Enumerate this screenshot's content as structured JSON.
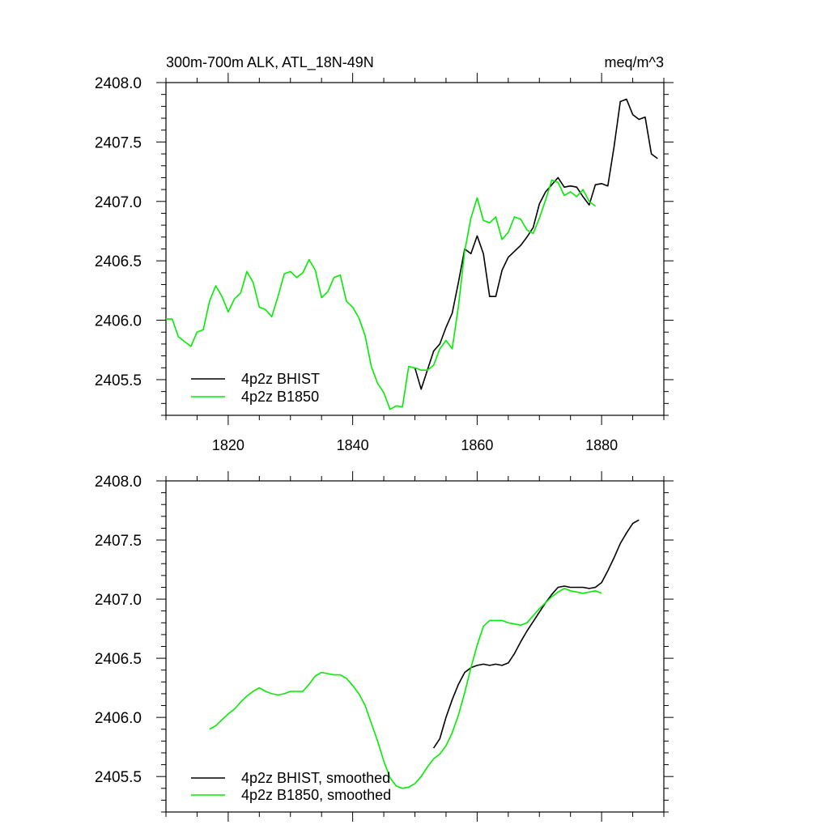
{
  "chart_data": [
    {
      "type": "line",
      "title": "300m-700m ALK, ATL_18N-49N",
      "units": "meq/m^3",
      "xlim": [
        1810,
        1890
      ],
      "ylim": [
        2405.2,
        2408.0
      ],
      "x_ticks": [
        1820,
        1840,
        1860,
        1880
      ],
      "x_tick_labels": [
        "1820",
        "1840",
        "1860",
        "1880"
      ],
      "y_ticks": [
        2405.5,
        2406.0,
        2406.5,
        2407.0,
        2407.5,
        2408.0
      ],
      "y_tick_labels": [
        "2405.5",
        "2406.0",
        "2406.5",
        "2407.0",
        "2407.5",
        "2408.0"
      ],
      "legend_position": "bottom-left",
      "series": [
        {
          "name": "4p2z BHIST",
          "color": "#000000",
          "x": [
            1850,
            1851,
            1852,
            1853,
            1854,
            1855,
            1856,
            1857,
            1858,
            1859,
            1860,
            1861,
            1862,
            1863,
            1864,
            1865,
            1866,
            1867,
            1868,
            1869,
            1870,
            1871,
            1872,
            1873,
            1874,
            1875,
            1876,
            1877,
            1878,
            1879,
            1880,
            1881,
            1882,
            1883,
            1884,
            1885,
            1886,
            1887,
            1888,
            1889
          ],
          "y": [
            2405.6,
            2405.42,
            2405.58,
            2405.74,
            2405.8,
            2405.94,
            2406.06,
            2406.32,
            2406.6,
            2406.56,
            2406.71,
            2406.56,
            2406.2,
            2406.2,
            2406.42,
            2406.53,
            2406.58,
            2406.63,
            2406.7,
            2406.78,
            2406.98,
            2407.08,
            2407.14,
            2407.2,
            2407.12,
            2407.13,
            2407.12,
            2407.04,
            2406.97,
            2407.14,
            2407.15,
            2407.13,
            2407.46,
            2407.84,
            2407.86,
            2407.73,
            2407.69,
            2407.71,
            2407.4,
            2407.36
          ]
        },
        {
          "name": "4p2z B1850",
          "color": "#00ee00",
          "x": [
            1810,
            1811,
            1812,
            1813,
            1814,
            1815,
            1816,
            1817,
            1818,
            1819,
            1820,
            1821,
            1822,
            1823,
            1824,
            1825,
            1826,
            1827,
            1828,
            1829,
            1830,
            1831,
            1832,
            1833,
            1834,
            1835,
            1836,
            1837,
            1838,
            1839,
            1840,
            1841,
            1842,
            1843,
            1844,
            1845,
            1846,
            1847,
            1848,
            1849,
            1850,
            1851,
            1852,
            1853,
            1854,
            1855,
            1856,
            1857,
            1858,
            1859,
            1860,
            1861,
            1862,
            1863,
            1864,
            1865,
            1866,
            1867,
            1868,
            1869,
            1870,
            1871,
            1872,
            1873,
            1874,
            1875,
            1876,
            1877,
            1878,
            1879
          ],
          "y": [
            2406.01,
            2406.01,
            2405.86,
            2405.82,
            2405.78,
            2405.9,
            2405.92,
            2406.16,
            2406.29,
            2406.2,
            2406.07,
            2406.18,
            2406.23,
            2406.41,
            2406.32,
            2406.11,
            2406.09,
            2406.03,
            2406.2,
            2406.39,
            2406.41,
            2406.36,
            2406.4,
            2406.51,
            2406.42,
            2406.19,
            2406.24,
            2406.36,
            2406.38,
            2406.16,
            2406.11,
            2406.02,
            2405.87,
            2405.61,
            2405.47,
            2405.39,
            2405.25,
            2405.28,
            2405.27,
            2405.61,
            2405.6,
            2405.58,
            2405.58,
            2405.62,
            2405.76,
            2405.83,
            2405.76,
            2406.12,
            2406.58,
            2406.86,
            2407.03,
            2406.84,
            2406.82,
            2406.87,
            2406.68,
            2406.74,
            2406.87,
            2406.85,
            2406.76,
            2406.73,
            2406.86,
            2407.01,
            2407.18,
            2407.16,
            2407.05,
            2407.08,
            2407.04,
            2407.1,
            2407.0,
            2406.96
          ]
        }
      ]
    },
    {
      "type": "line",
      "title": "",
      "units": "",
      "xlim": [
        1810,
        1890
      ],
      "ylim": [
        2405.2,
        2408.0
      ],
      "x_ticks": [
        1820,
        1840,
        1860,
        1880
      ],
      "x_tick_labels": [],
      "y_ticks": [
        2405.5,
        2406.0,
        2406.5,
        2407.0,
        2407.5,
        2408.0
      ],
      "y_tick_labels": [
        "2405.5",
        "2406.0",
        "2406.5",
        "2407.0",
        "2407.5",
        "2408.0"
      ],
      "legend_position": "bottom-left",
      "series": [
        {
          "name": "4p2z BHIST, smoothed",
          "color": "#000000",
          "x": [
            1853,
            1854,
            1855,
            1856,
            1857,
            1858,
            1859,
            1860,
            1861,
            1862,
            1863,
            1864,
            1865,
            1866,
            1867,
            1868,
            1869,
            1870,
            1871,
            1872,
            1873,
            1874,
            1875,
            1876,
            1877,
            1878,
            1879,
            1880,
            1881,
            1882,
            1883,
            1884,
            1885,
            1886
          ],
          "y": [
            2405.74,
            2405.82,
            2406.0,
            2406.15,
            2406.28,
            2406.38,
            2406.42,
            2406.44,
            2406.45,
            2406.44,
            2406.45,
            2406.44,
            2406.46,
            2406.54,
            2406.64,
            2406.73,
            2406.81,
            2406.89,
            2406.97,
            2407.04,
            2407.1,
            2407.11,
            2407.1,
            2407.1,
            2407.1,
            2407.09,
            2407.1,
            2407.14,
            2407.24,
            2407.35,
            2407.47,
            2407.56,
            2407.64,
            2407.67
          ]
        },
        {
          "name": "4p2z B1850, smoothed",
          "color": "#00ee00",
          "x": [
            1817,
            1818,
            1819,
            1820,
            1821,
            1822,
            1823,
            1824,
            1825,
            1826,
            1827,
            1828,
            1829,
            1830,
            1831,
            1832,
            1833,
            1834,
            1835,
            1836,
            1837,
            1838,
            1839,
            1840,
            1841,
            1842,
            1843,
            1844,
            1845,
            1846,
            1847,
            1848,
            1849,
            1850,
            1851,
            1852,
            1853,
            1854,
            1855,
            1856,
            1857,
            1858,
            1859,
            1860,
            1861,
            1862,
            1863,
            1864,
            1865,
            1866,
            1867,
            1868,
            1869,
            1870,
            1871,
            1872,
            1873,
            1874,
            1875,
            1876,
            1877,
            1878,
            1879,
            1880
          ],
          "y": [
            2405.9,
            2405.93,
            2405.98,
            2406.03,
            2406.07,
            2406.13,
            2406.18,
            2406.22,
            2406.25,
            2406.22,
            2406.2,
            2406.19,
            2406.2,
            2406.22,
            2406.22,
            2406.22,
            2406.28,
            2406.35,
            2406.38,
            2406.37,
            2406.36,
            2406.36,
            2406.33,
            2406.27,
            2406.2,
            2406.1,
            2405.95,
            2405.8,
            2405.63,
            2405.49,
            2405.42,
            2405.4,
            2405.41,
            2405.44,
            2405.5,
            2405.58,
            2405.65,
            2405.69,
            2405.76,
            2405.87,
            2406.02,
            2406.21,
            2406.42,
            2406.61,
            2406.77,
            2406.82,
            2406.82,
            2406.82,
            2406.8,
            2406.79,
            2406.78,
            2406.8,
            2406.86,
            2406.92,
            2406.97,
            2407.02,
            2407.06,
            2407.09,
            2407.07,
            2407.06,
            2407.05,
            2407.06,
            2407.07,
            2407.05
          ]
        }
      ]
    }
  ]
}
